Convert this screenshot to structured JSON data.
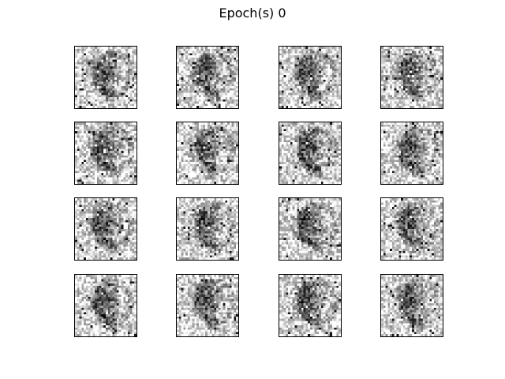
{
  "figure": {
    "title": "Epoch(s) 0",
    "rows": 4,
    "cols": 4,
    "colormap": "gray",
    "axes": "off",
    "image_grid": "28x28",
    "background_color": "#ffffff",
    "frame_color": "#000000",
    "panels": [
      {
        "name": "sample-1"
      },
      {
        "name": "sample-2"
      },
      {
        "name": "sample-3"
      },
      {
        "name": "sample-4"
      },
      {
        "name": "sample-5"
      },
      {
        "name": "sample-6"
      },
      {
        "name": "sample-7"
      },
      {
        "name": "sample-8"
      },
      {
        "name": "sample-9"
      },
      {
        "name": "sample-10"
      },
      {
        "name": "sample-11"
      },
      {
        "name": "sample-12"
      },
      {
        "name": "sample-13"
      },
      {
        "name": "sample-14"
      },
      {
        "name": "sample-15"
      },
      {
        "name": "sample-16"
      }
    ]
  }
}
